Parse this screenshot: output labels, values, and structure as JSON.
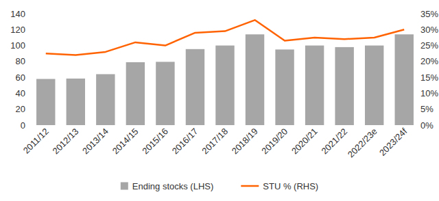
{
  "chart_data": {
    "type": "bar",
    "categories": [
      "2011/12",
      "2012/13",
      "2013/14",
      "2014/15",
      "2015/16",
      "2016/17",
      "2017/18",
      "2018/19",
      "2019/20",
      "2020/21",
      "2021/22",
      "2022/23e",
      "2023/24f"
    ],
    "series": [
      {
        "name": "Ending stocks (LHS)",
        "type": "bar",
        "color": "#a6a6a6",
        "values": [
          58,
          58.5,
          64,
          79,
          79.5,
          95.5,
          100,
          114,
          95,
          100,
          98,
          100,
          114
        ]
      },
      {
        "name": "STU % (RHS)",
        "type": "line",
        "axis": "y2",
        "color": "#ff6200",
        "values": [
          22.5,
          22,
          23,
          26,
          25,
          29,
          29.5,
          33,
          26.5,
          27.5,
          27,
          27.5,
          30
        ]
      }
    ],
    "ylim": [
      0,
      140
    ],
    "yticks": [
      0,
      20,
      40,
      60,
      80,
      100,
      120,
      140
    ],
    "y2lim": [
      0,
      35
    ],
    "y2ticks": [
      {
        "value": 0,
        "label": "0%"
      },
      {
        "value": 5,
        "label": "5%"
      },
      {
        "value": 10,
        "label": "10%"
      },
      {
        "value": 15,
        "label": "15%"
      },
      {
        "value": 20,
        "label": "20%"
      },
      {
        "value": 25,
        "label": "25%"
      },
      {
        "value": 30,
        "label": "30%"
      },
      {
        "value": 35,
        "label": "35%"
      }
    ],
    "grid": false,
    "legend": "bottom"
  }
}
